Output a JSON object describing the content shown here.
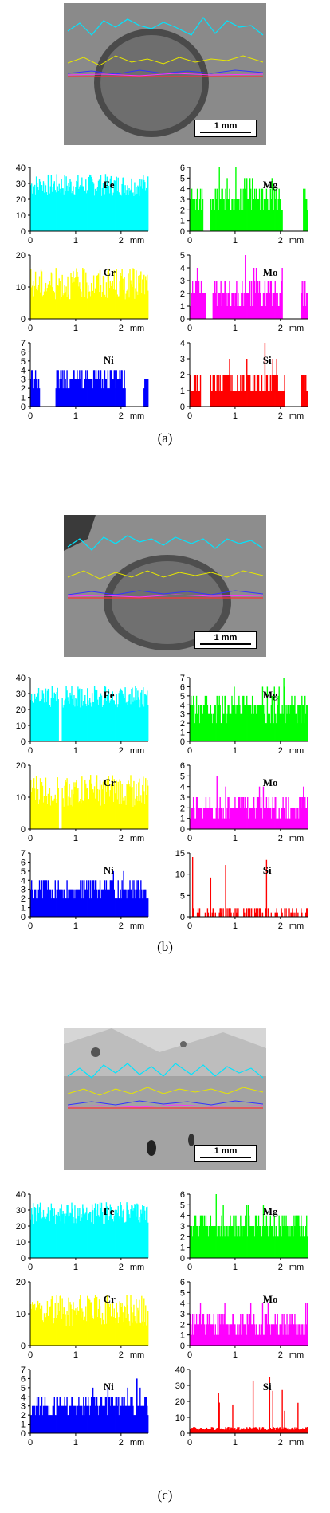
{
  "panels": [
    {
      "caption": "(a)",
      "scalebar": "1 mm",
      "charts": [
        {
          "type": "bar",
          "element": "Fe",
          "color": "#00ffff",
          "unit": "mm",
          "x_ticks": [
            "0",
            "1",
            "2"
          ],
          "y_ticks": [
            "0",
            "10",
            "20",
            "30",
            "40"
          ],
          "ylim": [
            0,
            40
          ],
          "base": 29,
          "spread": 7,
          "pattern": "dense",
          "gaps": []
        },
        {
          "type": "bar",
          "element": "Mg",
          "color": "#00ff00",
          "unit": "mm",
          "x_ticks": [
            "0",
            "1",
            "2"
          ],
          "y_ticks": [
            "0",
            "1",
            "2",
            "3",
            "4",
            "5",
            "6"
          ],
          "ylim": [
            0,
            6
          ],
          "base": 2,
          "spread": 2,
          "pattern": "discrete",
          "gaps": [
            [
              0.3,
              0.45
            ],
            [
              2.05,
              2.5
            ]
          ]
        },
        {
          "type": "bar",
          "element": "Cr",
          "color": "#ffff00",
          "unit": "mm",
          "x_ticks": [
            "0",
            "1",
            "2"
          ],
          "y_ticks": [
            "0",
            "10",
            "20"
          ],
          "ylim": [
            0,
            20
          ],
          "base": 11,
          "spread": 5,
          "pattern": "dense",
          "gaps": []
        },
        {
          "type": "bar",
          "element": "Mo",
          "color": "#ff00ff",
          "unit": "mm",
          "x_ticks": [
            "0",
            "1",
            "2"
          ],
          "y_ticks": [
            "0",
            "1",
            "2",
            "3",
            "4",
            "5"
          ],
          "ylim": [
            0,
            5
          ],
          "base": 1,
          "spread": 2,
          "pattern": "discrete",
          "gaps": [
            [
              0.35,
              0.5
            ],
            [
              2.05,
              2.45
            ]
          ]
        },
        {
          "type": "bar",
          "element": "Ni",
          "color": "#0000ff",
          "unit": "mm",
          "x_ticks": [
            "0",
            "1",
            "2"
          ],
          "y_ticks": [
            "0",
            "1",
            "2",
            "3",
            "4",
            "5",
            "6",
            "7"
          ],
          "ylim": [
            0,
            7
          ],
          "base": 2,
          "spread": 2,
          "pattern": "discrete",
          "gaps": [
            [
              0.2,
              0.55
            ],
            [
              2.1,
              2.5
            ]
          ]
        },
        {
          "type": "bar",
          "element": "Si",
          "color": "#ff0000",
          "unit": "mm",
          "x_ticks": [
            "0",
            "1",
            "2"
          ],
          "y_ticks": [
            "0",
            "1",
            "2",
            "3",
            "4"
          ],
          "ylim": [
            0,
            4
          ],
          "base": 1,
          "spread": 1,
          "pattern": "discrete",
          "gaps": [
            [
              0.25,
              0.45
            ],
            [
              2.1,
              2.45
            ]
          ]
        }
      ]
    },
    {
      "caption": "(b)",
      "scalebar": "1 mm",
      "charts": [
        {
          "type": "bar",
          "element": "Fe",
          "color": "#00ffff",
          "unit": "mm",
          "x_ticks": [
            "0",
            "1",
            "2"
          ],
          "y_ticks": [
            "0",
            "10",
            "20",
            "30",
            "40"
          ],
          "ylim": [
            0,
            40
          ],
          "base": 28,
          "spread": 7,
          "pattern": "dense",
          "gaps": [
            [
              0.62,
              0.7
            ]
          ]
        },
        {
          "type": "bar",
          "element": "Mg",
          "color": "#00ff00",
          "unit": "mm",
          "x_ticks": [
            "0",
            "1",
            "2"
          ],
          "y_ticks": [
            "0",
            "1",
            "2",
            "3",
            "4",
            "5",
            "6",
            "7"
          ],
          "ylim": [
            0,
            7
          ],
          "base": 2,
          "spread": 3,
          "pattern": "discrete",
          "gaps": []
        },
        {
          "type": "bar",
          "element": "Cr",
          "color": "#ffff00",
          "unit": "mm",
          "x_ticks": [
            "0",
            "1",
            "2"
          ],
          "y_ticks": [
            "0",
            "10",
            "20"
          ],
          "ylim": [
            0,
            20
          ],
          "base": 12,
          "spread": 5,
          "pattern": "dense",
          "gaps": [
            [
              0.62,
              0.7
            ]
          ]
        },
        {
          "type": "bar",
          "element": "Mo",
          "color": "#ff00ff",
          "unit": "mm",
          "x_ticks": [
            "0",
            "1",
            "2"
          ],
          "y_ticks": [
            "0",
            "1",
            "2",
            "3",
            "4",
            "5",
            "6"
          ],
          "ylim": [
            0,
            6
          ],
          "base": 1,
          "spread": 2,
          "pattern": "discrete",
          "gaps": []
        },
        {
          "type": "bar",
          "element": "Ni",
          "color": "#0000ff",
          "unit": "mm",
          "x_ticks": [
            "0",
            "1",
            "2"
          ],
          "y_ticks": [
            "0",
            "1",
            "2",
            "3",
            "4",
            "5",
            "6",
            "7"
          ],
          "ylim": [
            0,
            7
          ],
          "base": 2,
          "spread": 2,
          "pattern": "discrete",
          "gaps": []
        },
        {
          "type": "bar",
          "element": "Si",
          "color": "#ff0000",
          "unit": "mm",
          "x_ticks": [
            "0",
            "1",
            "2"
          ],
          "y_ticks": [
            "0",
            "5",
            "10",
            "15"
          ],
          "ylim": [
            0,
            15
          ],
          "base": 1,
          "spread": 1,
          "pattern": "sparse",
          "gaps": []
        }
      ]
    },
    {
      "caption": "(c)",
      "scalebar": "1 mm",
      "charts": [
        {
          "type": "bar",
          "element": "Fe",
          "color": "#00ffff",
          "unit": "mm",
          "x_ticks": [
            "0",
            "1",
            "2"
          ],
          "y_ticks": [
            "0",
            "10",
            "20",
            "30",
            "40"
          ],
          "ylim": [
            0,
            40
          ],
          "base": 28,
          "spread": 7,
          "pattern": "dense",
          "gaps": []
        },
        {
          "type": "bar",
          "element": "Mg",
          "color": "#00ff00",
          "unit": "mm",
          "x_ticks": [
            "0",
            "1",
            "2"
          ],
          "y_ticks": [
            "0",
            "1",
            "2",
            "3",
            "4",
            "5",
            "6"
          ],
          "ylim": [
            0,
            6
          ],
          "base": 2,
          "spread": 2,
          "pattern": "discrete",
          "gaps": []
        },
        {
          "type": "bar",
          "element": "Cr",
          "color": "#ffff00",
          "unit": "mm",
          "x_ticks": [
            "0",
            "1",
            "2"
          ],
          "y_ticks": [
            "0",
            "10",
            "20"
          ],
          "ylim": [
            0,
            20
          ],
          "base": 11,
          "spread": 5,
          "pattern": "dense",
          "gaps": []
        },
        {
          "type": "bar",
          "element": "Mo",
          "color": "#ff00ff",
          "unit": "mm",
          "x_ticks": [
            "0",
            "1",
            "2"
          ],
          "y_ticks": [
            "0",
            "1",
            "2",
            "3",
            "4",
            "5",
            "6"
          ],
          "ylim": [
            0,
            6
          ],
          "base": 1,
          "spread": 2,
          "pattern": "discrete",
          "gaps": []
        },
        {
          "type": "bar",
          "element": "Ni",
          "color": "#0000ff",
          "unit": "mm",
          "x_ticks": [
            "0",
            "1",
            "2"
          ],
          "y_ticks": [
            "0",
            "1",
            "2",
            "3",
            "4",
            "5",
            "6",
            "7"
          ],
          "ylim": [
            0,
            7
          ],
          "base": 2,
          "spread": 2,
          "pattern": "discrete",
          "gaps": []
        },
        {
          "type": "bar",
          "element": "Si",
          "color": "#ff0000",
          "unit": "mm",
          "x_ticks": [
            "0",
            "1",
            "2"
          ],
          "y_ticks": [
            "0",
            "10",
            "20",
            "30",
            "40"
          ],
          "ylim": [
            0,
            40
          ],
          "base": 2,
          "spread": 2,
          "pattern": "spiky",
          "gaps": []
        }
      ]
    }
  ]
}
